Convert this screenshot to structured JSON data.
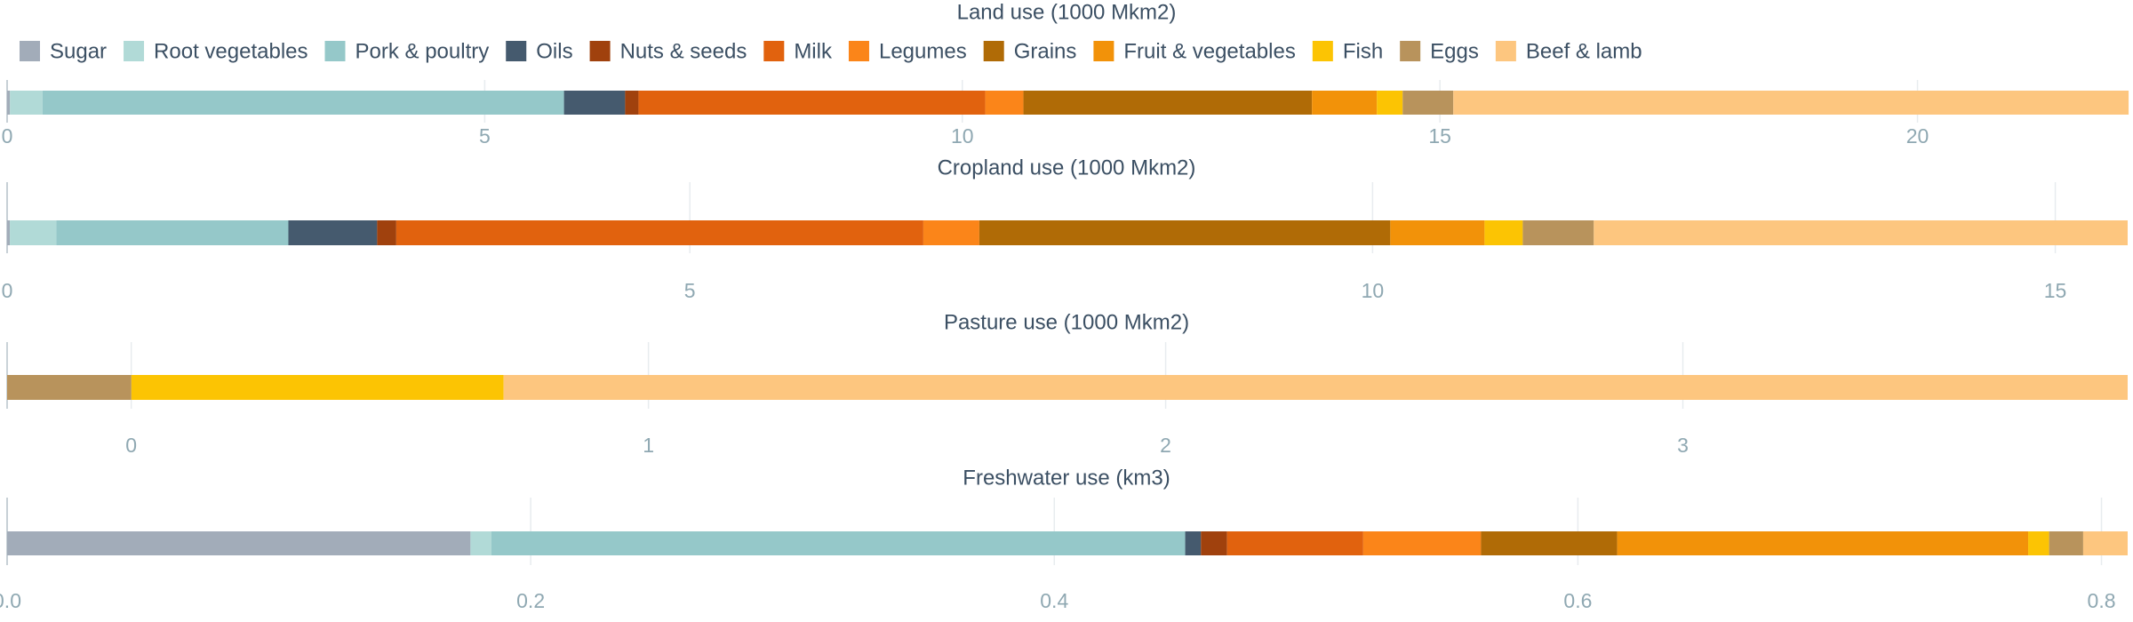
{
  "chart_data": [
    {
      "type": "bar",
      "orientation": "horizontal",
      "stacked": true,
      "title": "Land use (1000 Mkm2)",
      "xlim": [
        0,
        22.2
      ],
      "xticks": [
        0,
        5,
        10,
        15,
        20
      ],
      "grid": true,
      "legend": "top-left",
      "series": [
        {
          "name": "Sugar",
          "color": "#a2acb9",
          "values": [
            0.03
          ]
        },
        {
          "name": "Root vegetables",
          "color": "#b1dad7",
          "values": [
            0.34
          ]
        },
        {
          "name": "Pork & poultry",
          "color": "#95c8c9",
          "values": [
            5.46
          ]
        },
        {
          "name": "Oils",
          "color": "#455a6e",
          "values": [
            0.64
          ]
        },
        {
          "name": "Nuts & seeds",
          "color": "#a0410d",
          "values": [
            0.14
          ]
        },
        {
          "name": "Milk",
          "color": "#e1620e",
          "values": [
            3.63
          ]
        },
        {
          "name": "Legumes",
          "color": "#fb8519",
          "values": [
            0.4
          ]
        },
        {
          "name": "Grains",
          "color": "#b06b06",
          "values": [
            3.02
          ]
        },
        {
          "name": "Fruit & vegetables",
          "color": "#f29209",
          "values": [
            0.68
          ]
        },
        {
          "name": "Fish",
          "color": "#fcc403",
          "values": [
            0.27
          ]
        },
        {
          "name": "Eggs",
          "color": "#b8935c",
          "values": [
            0.53
          ]
        },
        {
          "name": "Beef & lamb",
          "color": "#fdc67f",
          "values": [
            7.07
          ]
        }
      ]
    },
    {
      "type": "bar",
      "orientation": "horizontal",
      "stacked": true,
      "title": "Cropland use (1000 Mkm2)",
      "xlim": [
        0,
        15.53
      ],
      "xticks": [
        0,
        5,
        10,
        15
      ],
      "grid": true,
      "series": [
        {
          "name": "Sugar",
          "color": "#a2acb9",
          "values": [
            0.02
          ]
        },
        {
          "name": "Root vegetables",
          "color": "#b1dad7",
          "values": [
            0.34
          ]
        },
        {
          "name": "Pork & poultry",
          "color": "#95c8c9",
          "values": [
            1.7
          ]
        },
        {
          "name": "Oils",
          "color": "#455a6e",
          "values": [
            0.65
          ]
        },
        {
          "name": "Nuts & seeds",
          "color": "#a0410d",
          "values": [
            0.14
          ]
        },
        {
          "name": "Milk",
          "color": "#e1620e",
          "values": [
            3.86
          ]
        },
        {
          "name": "Legumes",
          "color": "#fb8519",
          "values": [
            0.41
          ]
        },
        {
          "name": "Grains",
          "color": "#b06b06",
          "values": [
            3.01
          ]
        },
        {
          "name": "Fruit & vegetables",
          "color": "#f29209",
          "values": [
            0.69
          ]
        },
        {
          "name": "Fish",
          "color": "#fcc403",
          "values": [
            0.28
          ]
        },
        {
          "name": "Eggs",
          "color": "#b8935c",
          "values": [
            0.52
          ]
        },
        {
          "name": "Beef & lamb",
          "color": "#fdc67f",
          "values": [
            3.91
          ]
        }
      ]
    },
    {
      "type": "bar",
      "orientation": "horizontal",
      "stacked": true,
      "title": "Pasture use (1000 Mkm2)",
      "xlim": [
        -0.24,
        3.86
      ],
      "xticks": [
        0,
        1,
        2,
        3
      ],
      "grid": true,
      "series": [
        {
          "name": "Sugar",
          "color": "#a2acb9",
          "values": [
            0
          ]
        },
        {
          "name": "Root vegetables",
          "color": "#b1dad7",
          "values": [
            0
          ]
        },
        {
          "name": "Pork & poultry",
          "color": "#95c8c9",
          "values": [
            0
          ]
        },
        {
          "name": "Oils",
          "color": "#455a6e",
          "values": [
            0
          ]
        },
        {
          "name": "Nuts & seeds",
          "color": "#a0410d",
          "values": [
            0
          ]
        },
        {
          "name": "Milk",
          "color": "#e1620e",
          "values": [
            0
          ]
        },
        {
          "name": "Legumes",
          "color": "#fb8519",
          "values": [
            0
          ]
        },
        {
          "name": "Grains",
          "color": "#b06b06",
          "values": [
            0
          ]
        },
        {
          "name": "Fruit & vegetables",
          "color": "#f29209",
          "values": [
            0
          ]
        },
        {
          "name": "Fish",
          "color": "#fcc403",
          "values": [
            0.72
          ]
        },
        {
          "name": "Eggs",
          "color": "#b8935c",
          "values": [
            -0.24
          ]
        },
        {
          "name": "Beef & lamb",
          "color": "#fdc67f",
          "values": [
            3.14
          ]
        }
      ]
    },
    {
      "type": "bar",
      "orientation": "horizontal",
      "stacked": true,
      "title": "Freshwater use (km3)",
      "xlim": [
        0,
        0.81
      ],
      "xticks": [
        {
          "value": 0,
          "label": "0.0"
        },
        0.2,
        0.4,
        0.6,
        0.8
      ],
      "grid": true,
      "series": [
        {
          "name": "Sugar",
          "color": "#a2acb9",
          "values": [
            0.177
          ]
        },
        {
          "name": "Root vegetables",
          "color": "#b1dad7",
          "values": [
            0.008
          ]
        },
        {
          "name": "Pork & poultry",
          "color": "#95c8c9",
          "values": [
            0.265
          ]
        },
        {
          "name": "Oils",
          "color": "#455a6e",
          "values": [
            0.006
          ]
        },
        {
          "name": "Nuts & seeds",
          "color": "#a0410d",
          "values": [
            0.01
          ]
        },
        {
          "name": "Milk",
          "color": "#e1620e",
          "values": [
            0.052
          ]
        },
        {
          "name": "Legumes",
          "color": "#fb8519",
          "values": [
            0.045
          ]
        },
        {
          "name": "Grains",
          "color": "#b06b06",
          "values": [
            0.052
          ]
        },
        {
          "name": "Fruit & vegetables",
          "color": "#f29209",
          "values": [
            0.157
          ]
        },
        {
          "name": "Fish",
          "color": "#fcc403",
          "values": [
            0.008
          ]
        },
        {
          "name": "Eggs",
          "color": "#b8935c",
          "values": [
            0.013
          ]
        },
        {
          "name": "Beef & lamb",
          "color": "#fdc67f",
          "values": [
            0.017
          ]
        }
      ]
    }
  ]
}
